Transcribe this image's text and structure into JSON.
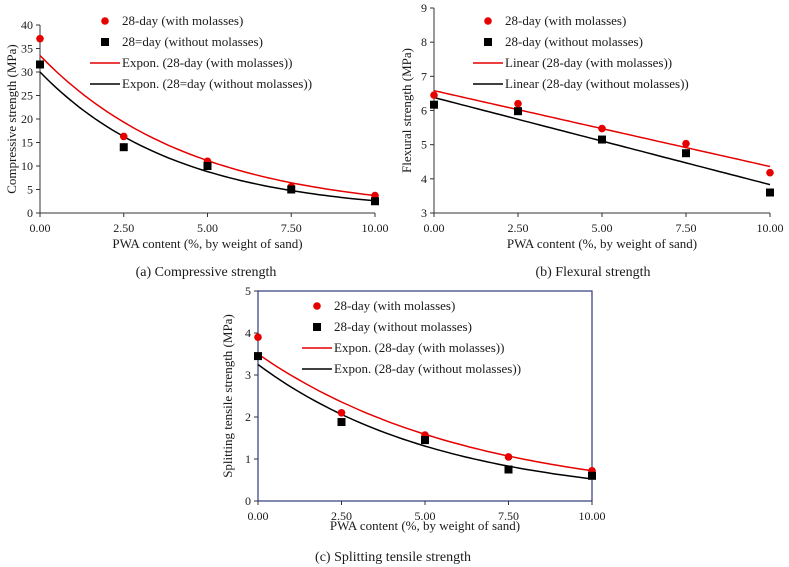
{
  "chart_data": [
    {
      "id": "a",
      "type": "scatter",
      "caption": "(a) Compressive strength",
      "xlabel": "PWA content (%, by weight of sand)",
      "ylabel": "Compressive strength (MPa)",
      "xlim": [
        0,
        10
      ],
      "ylim": [
        0,
        40
      ],
      "xticks": [
        0,
        2.5,
        5,
        7.5,
        10
      ],
      "xtick_labels": [
        "0.00",
        "2.50",
        "5.00",
        "7.50",
        "10.00"
      ],
      "yticks": [
        0,
        5,
        10,
        15,
        20,
        25,
        30,
        35,
        40
      ],
      "ytick_labels": [
        "0",
        "5",
        "10",
        "15",
        "20",
        "25",
        "30",
        "35",
        "40"
      ],
      "legend_position": "top-right",
      "series": [
        {
          "name": "28-day (with molasses)",
          "marker": "circle",
          "color": "#e60000",
          "x": [
            0,
            2.5,
            5,
            7.5,
            10
          ],
          "y": [
            37.1,
            16.3,
            11.0,
            5.6,
            3.7
          ]
        },
        {
          "name": "28=day (without molasses)",
          "marker": "square",
          "color": "#000000",
          "x": [
            0,
            2.5,
            5,
            7.5,
            10
          ],
          "y": [
            31.6,
            14.0,
            10.0,
            5.0,
            2.5
          ]
        }
      ],
      "trendlines": [
        {
          "name": "Expon. (28-day (with molasses))",
          "kind": "exponential",
          "color": "#e60000",
          "a": 33.5,
          "b": -0.22
        },
        {
          "name": "Expon. (28=day (without molasses))",
          "kind": "exponential",
          "color": "#000000",
          "a": 30.0,
          "b": -0.245
        }
      ]
    },
    {
      "id": "b",
      "type": "scatter",
      "caption": "(b) Flexural strength",
      "xlabel": "PWA content (%, by weight of sand)",
      "ylabel": "Flexural strength (MPa)",
      "xlim": [
        0,
        10
      ],
      "ylim": [
        3,
        9
      ],
      "xticks": [
        0,
        2.5,
        5,
        7.5,
        10
      ],
      "xtick_labels": [
        "0.00",
        "2.50",
        "5.00",
        "7.50",
        "10.00"
      ],
      "yticks": [
        3,
        4,
        5,
        6,
        7,
        8,
        9
      ],
      "ytick_labels": [
        "3",
        "4",
        "5",
        "6",
        "7",
        "8",
        "9"
      ],
      "legend_position": "top-right",
      "series": [
        {
          "name": "28-day (with molasses)",
          "marker": "circle",
          "color": "#e60000",
          "x": [
            0,
            2.5,
            5,
            7.5,
            10
          ],
          "y": [
            6.45,
            6.2,
            5.47,
            5.03,
            4.18
          ]
        },
        {
          "name": "28-day (without molasses)",
          "marker": "square",
          "color": "#000000",
          "x": [
            0,
            2.5,
            5,
            7.5,
            10
          ],
          "y": [
            6.17,
            5.98,
            5.15,
            4.75,
            3.6
          ]
        }
      ],
      "trendlines": [
        {
          "name": "Linear (28-day (with molasses))",
          "kind": "linear",
          "color": "#e60000",
          "a": 6.58,
          "b": -0.222
        },
        {
          "name": "Linear (28-day (without molasses))",
          "kind": "linear",
          "color": "#000000",
          "a": 6.38,
          "b": -0.255
        }
      ]
    },
    {
      "id": "c",
      "type": "scatter",
      "caption": "(c) Splitting tensile strength",
      "xlabel": "PWA content (%, by weight of sand)",
      "ylabel": "Splitting tensile strength (MPa)",
      "xlim": [
        0,
        10
      ],
      "ylim": [
        0,
        5
      ],
      "xticks": [
        0,
        2.5,
        5,
        7.5,
        10
      ],
      "xtick_labels": [
        "0.00",
        "2.50",
        "5.00",
        "7.50",
        "10.00"
      ],
      "yticks": [
        0,
        1,
        2,
        3,
        4,
        5
      ],
      "ytick_labels": [
        "0",
        "1",
        "2",
        "3",
        "4",
        "5"
      ],
      "legend_position": "top-right",
      "series": [
        {
          "name": "28-day (with molasses)",
          "marker": "circle",
          "color": "#e60000",
          "x": [
            0,
            2.5,
            5,
            7.5,
            10
          ],
          "y": [
            3.9,
            2.1,
            1.57,
            1.05,
            0.72
          ]
        },
        {
          "name": "28-day (without molasses)",
          "marker": "square",
          "color": "#000000",
          "x": [
            0,
            2.5,
            5,
            7.5,
            10
          ],
          "y": [
            3.45,
            1.88,
            1.45,
            0.75,
            0.6
          ]
        }
      ],
      "trendlines": [
        {
          "name": "Expon. (28-day (with molasses))",
          "kind": "exponential",
          "color": "#e60000",
          "a": 3.5,
          "b": -0.158
        },
        {
          "name": "Expon. (28-day (without molasses))",
          "kind": "exponential",
          "color": "#000000",
          "a": 3.25,
          "b": -0.182
        }
      ]
    }
  ]
}
